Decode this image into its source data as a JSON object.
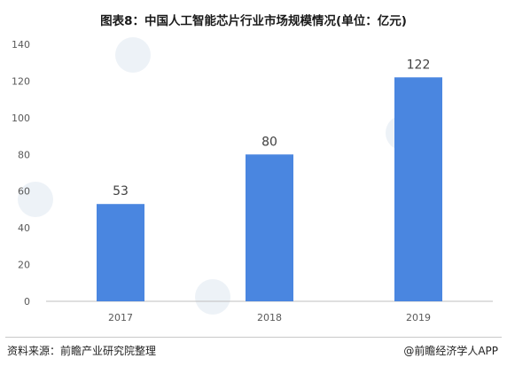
{
  "title": "图表8：中国人工智能芯片行业市场规模情况(单位：亿元)",
  "chart_data": {
    "type": "bar",
    "categories": [
      "2017",
      "2018",
      "2019"
    ],
    "values": [
      53,
      80,
      122
    ],
    "data_labels": [
      "53",
      "80",
      "122"
    ],
    "y_ticks": [
      0,
      20,
      40,
      60,
      80,
      100,
      120,
      140
    ],
    "ylim": [
      0,
      140
    ],
    "grid": false,
    "legend": "none",
    "colors": {
      "bar": "#4a86e0",
      "axis": "#bfbfbf",
      "tick_text": "#595959",
      "label_text": "#404040"
    }
  },
  "footer": {
    "source": "资料来源：前瞻产业研究院整理",
    "publisher_prefix": "@",
    "publisher": "前瞻经济学人APP"
  }
}
